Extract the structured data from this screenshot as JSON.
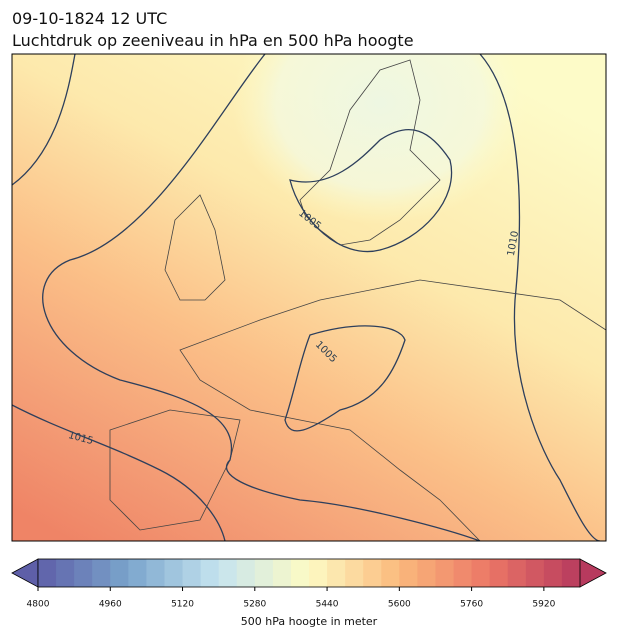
{
  "title": [
    "09-10-1824 12 UTC",
    "Luchtdruk op zeeniveau in hPa en 500 hPa hoogte"
  ],
  "map": {
    "contour_labels": [
      1005,
      1010,
      1005,
      1015
    ]
  },
  "colorbar": {
    "label": "500 hPa hoogte in meter",
    "lim": [
      4800,
      6000
    ],
    "step": 40,
    "ticks": [
      4800,
      4960,
      5120,
      5280,
      5440,
      5600,
      5760,
      5920
    ],
    "colormap": [
      "#5e5fa8",
      "#7aa5cc",
      "#c6e4ef",
      "#fdfbc4",
      "#fbb97c",
      "#eb7666",
      "#b73a5e"
    ]
  }
}
